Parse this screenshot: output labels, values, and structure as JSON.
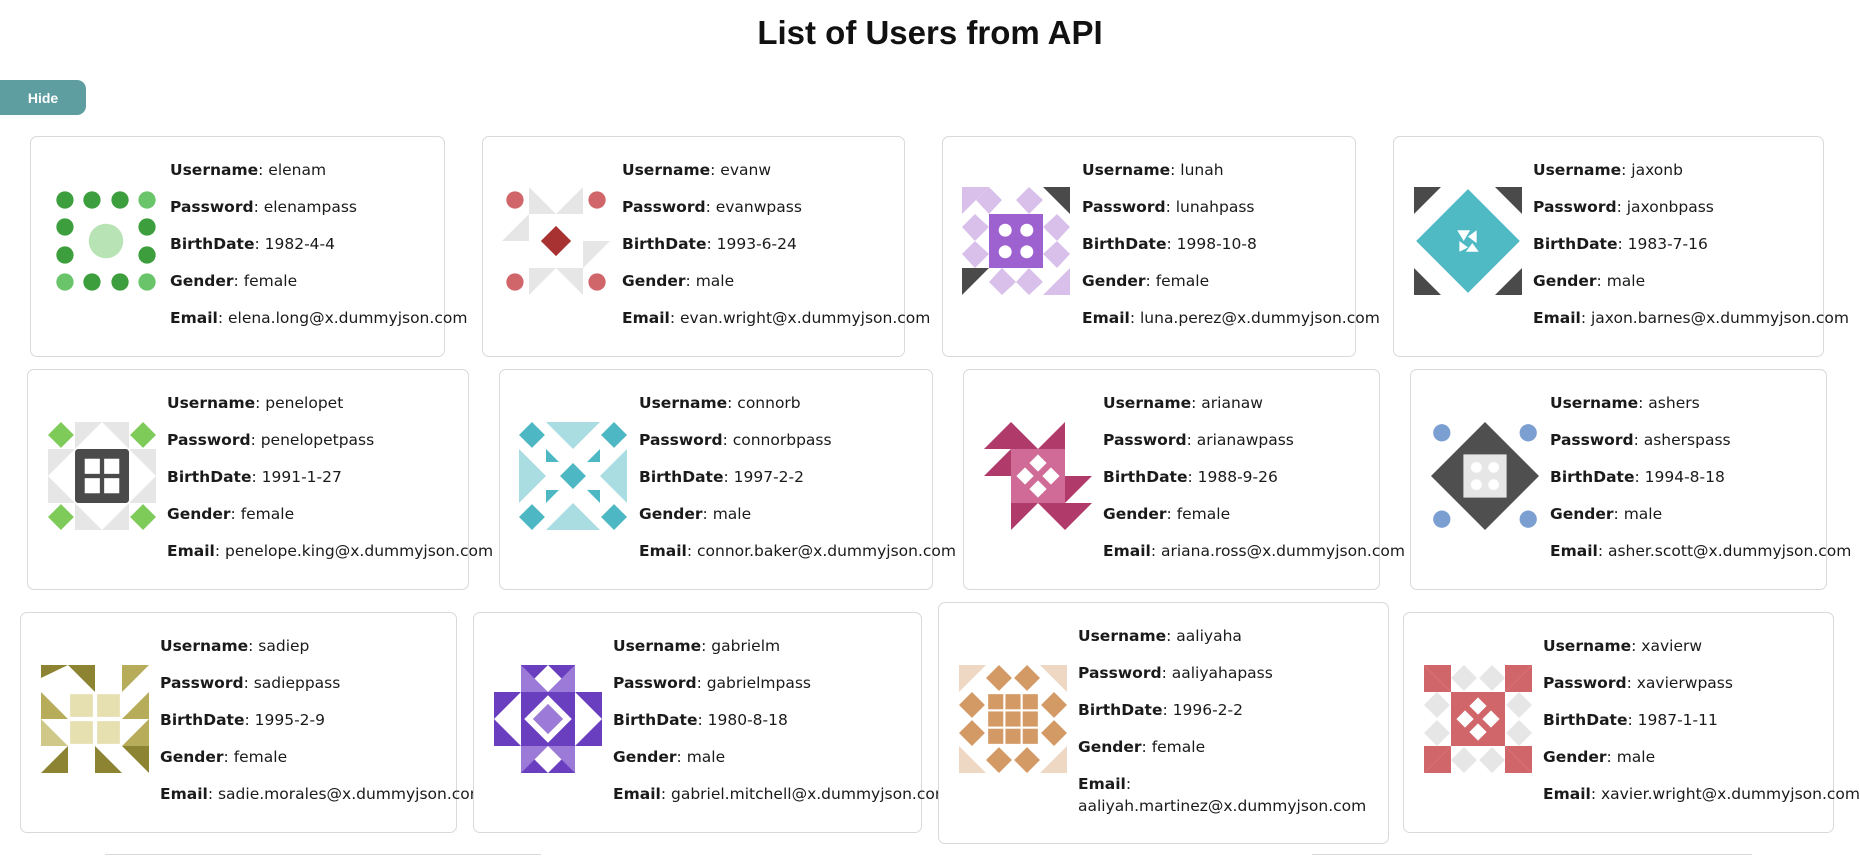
{
  "page": {
    "title": "List of Users from API",
    "hide_label": "Hide"
  },
  "labels": {
    "username": "Username",
    "password": "Password",
    "birthdate": "BirthDate",
    "gender": "Gender",
    "email": "Email"
  },
  "users": [
    {
      "username": "elenam",
      "password": "elenampass",
      "birthDate": "1982-4-4",
      "gender": "female",
      "email": "elena.long@x.dummyjson.com"
    },
    {
      "username": "evanw",
      "password": "evanwpass",
      "birthDate": "1993-6-24",
      "gender": "male",
      "email": "evan.wright@x.dummyjson.com"
    },
    {
      "username": "lunah",
      "password": "lunahpass",
      "birthDate": "1998-10-8",
      "gender": "female",
      "email": "luna.perez@x.dummyjson.com"
    },
    {
      "username": "jaxonb",
      "password": "jaxonbpass",
      "birthDate": "1983-7-16",
      "gender": "male",
      "email": "jaxon.barnes@x.dummyjson.com"
    },
    {
      "username": "penelopet",
      "password": "penelopetpass",
      "birthDate": "1991-1-27",
      "gender": "female",
      "email": "penelope.king@x.dummyjson.com"
    },
    {
      "username": "connorb",
      "password": "connorbpass",
      "birthDate": "1997-2-2",
      "gender": "male",
      "email": "connor.baker@x.dummyjson.com"
    },
    {
      "username": "arianaw",
      "password": "arianawpass",
      "birthDate": "1988-9-26",
      "gender": "female",
      "email": "ariana.ross@x.dummyjson.com"
    },
    {
      "username": "ashers",
      "password": "asherspass",
      "birthDate": "1994-8-18",
      "gender": "male",
      "email": "asher.scott@x.dummyjson.com"
    },
    {
      "username": "sadiep",
      "password": "sadieppass",
      "birthDate": "1995-2-9",
      "gender": "female",
      "email": "sadie.morales@x.dummyjson.com"
    },
    {
      "username": "gabrielm",
      "password": "gabrielmpass",
      "birthDate": "1980-8-18",
      "gender": "male",
      "email": "gabriel.mitchell@x.dummyjson.com"
    },
    {
      "username": "aaliyaha",
      "password": "aaliyahapass",
      "birthDate": "1996-2-2",
      "gender": "female",
      "email": "aaliyah.martinez@x.dummyjson.com"
    },
    {
      "username": "xavierw",
      "password": "xavierwpass",
      "birthDate": "1987-1-11",
      "gender": "male",
      "email": "xavier.wright@x.dummyjson.com"
    }
  ],
  "avatar_colors": [
    "#3c9e3c",
    "#c85a5a",
    "#9d62cf",
    "#4fbac4",
    "#7ecb5a",
    "#4db8c4",
    "#b03a6a",
    "#7b9fd1",
    "#b7ac5a",
    "#6a3fbf",
    "#d49a66",
    "#d0656a"
  ]
}
